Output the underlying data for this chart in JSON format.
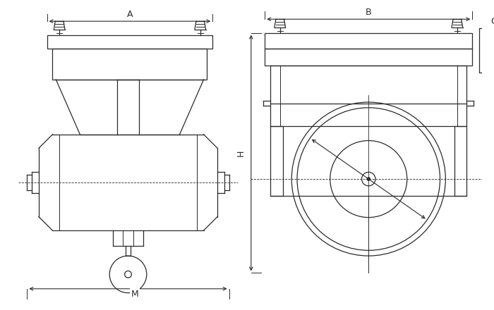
{
  "bg_color": "#ffffff",
  "line_color": "#2a2a2a",
  "lw": 0.9,
  "fig_width": 7.0,
  "fig_height": 4.4,
  "dpi": 100,
  "labels": {
    "M": "M",
    "A": "A",
    "B": "B",
    "H": "H",
    "C": "C"
  }
}
